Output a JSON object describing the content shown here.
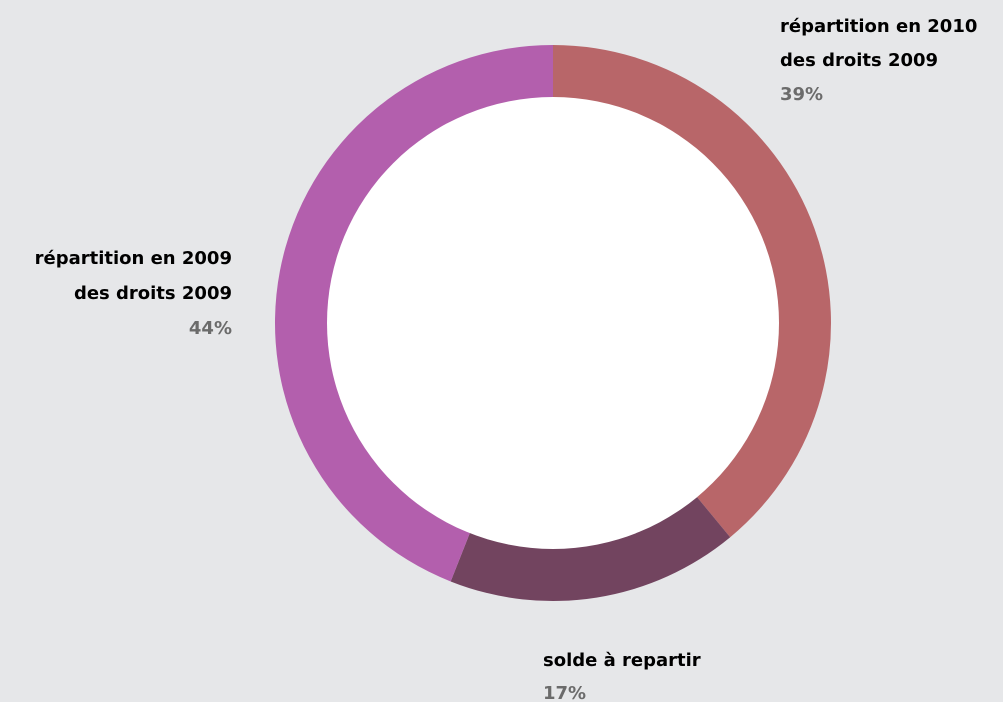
{
  "chart_data": {
    "type": "pie",
    "style": "donut",
    "start_angle": "top",
    "direction": "clockwise",
    "background": "#e6e7e9",
    "hole_color": "#ffffff",
    "slices": [
      {
        "label_lines": [
          "répartition en 2010",
          "des droits 2009"
        ],
        "value": 39,
        "percent_label": "39%",
        "color": "#b86669"
      },
      {
        "label_lines": [
          "solde à repartir"
        ],
        "value": 17,
        "percent_label": "17%",
        "color": "#72445f"
      },
      {
        "label_lines": [
          "répartition en 2009",
          "des droits 2009"
        ],
        "value": 44,
        "percent_label": "44%",
        "color": "#b35fad"
      }
    ]
  }
}
